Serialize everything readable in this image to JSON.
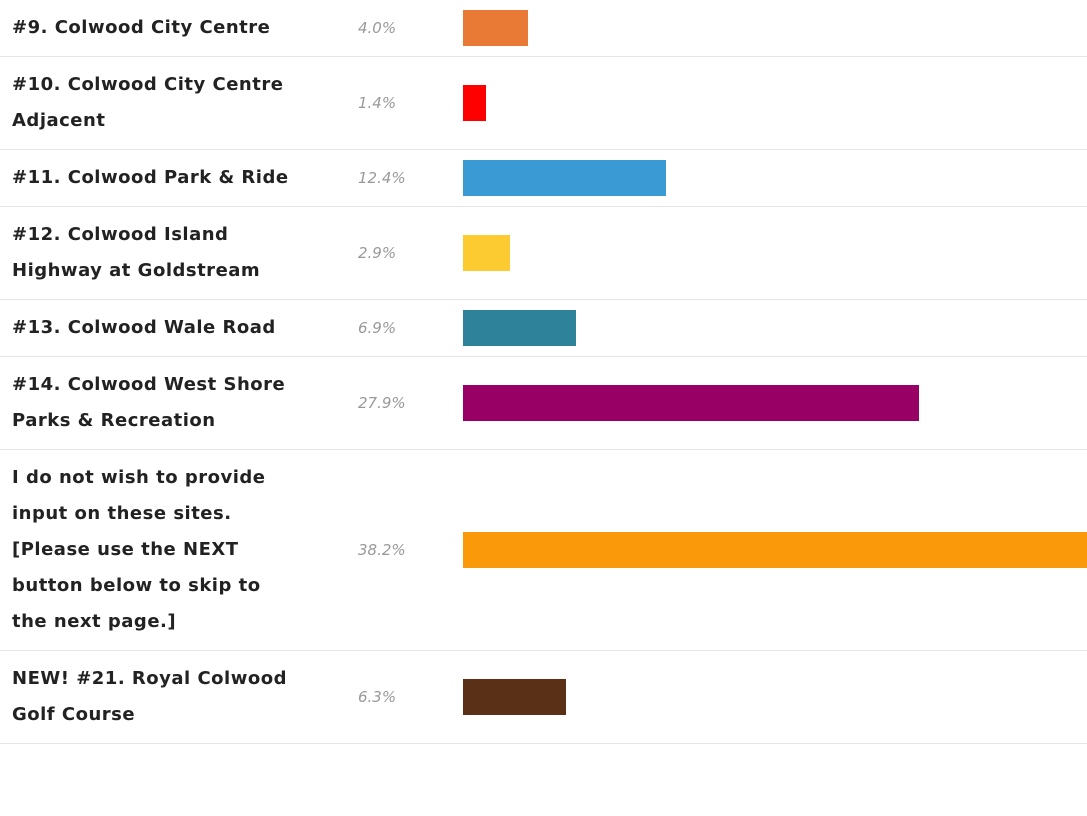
{
  "chart_data": {
    "type": "bar",
    "orientation": "horizontal",
    "categories": [
      "#9. Colwood City Centre",
      "#10. Colwood City Centre Adjacent",
      "#11. Colwood Park & Ride",
      "#12. Colwood Island Highway at Goldstream",
      "#13. Colwood Wale Road",
      "#14. Colwood West Shore Parks & Recreation",
      "I do not wish to provide input on these sites. [Please use the NEXT button below to skip to the next page.]",
      "NEW! #21. Royal Colwood Golf Course"
    ],
    "values": [
      4.0,
      1.4,
      12.4,
      2.9,
      6.9,
      27.9,
      38.2,
      6.3
    ],
    "value_labels": [
      "4.0%",
      "1.4%",
      "12.4%",
      "2.9%",
      "6.9%",
      "27.9%",
      "38.2%",
      "6.3%"
    ],
    "colors": [
      "#e97a35",
      "#ff0000",
      "#3a9ad3",
      "#fccb32",
      "#2e8299",
      "#990066",
      "#fa9a0a",
      "#5a3116"
    ]
  }
}
